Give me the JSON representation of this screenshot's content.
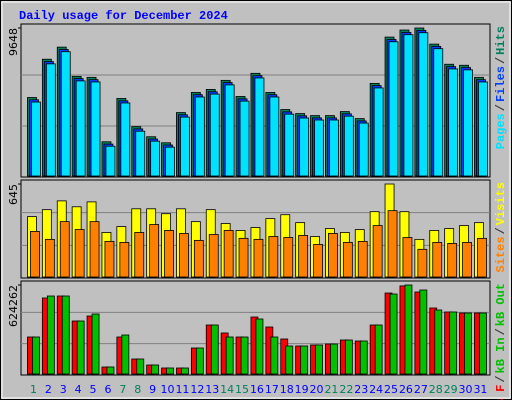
{
  "title": "Daily usage for December 2024",
  "legend_separator": "/",
  "chart_data": [
    {
      "type": "bar",
      "ylim": [
        0,
        9648
      ],
      "yticks": [
        9648
      ],
      "legend_reversed": true,
      "series": [
        {
          "name": "Hits",
          "color": "#00805c",
          "values": [
            5119,
            7613,
            8401,
            6497,
            6432,
            2231,
            5054,
            3216,
            2560,
            2166,
            4135,
            5447,
            5644,
            6235,
            5185,
            6694,
            5447,
            4332,
            4069,
            3938,
            3938,
            4200,
            3741,
            6038,
            9057,
            9516,
            9648,
            8598,
            7285,
            7219,
            6432
          ]
        },
        {
          "name": "Files",
          "color": "#0040ff",
          "values": [
            4970,
            7460,
            8250,
            6350,
            6280,
            2080,
            4900,
            3070,
            2410,
            2020,
            3990,
            5300,
            5490,
            6090,
            5030,
            6540,
            5300,
            4180,
            3920,
            3790,
            3790,
            4050,
            3590,
            5890,
            8900,
            9360,
            9490,
            8450,
            7130,
            7070,
            6280
          ]
        },
        {
          "name": "Pages",
          "color": "#00e0ff",
          "values": [
            4820,
            7310,
            8100,
            6200,
            6130,
            1940,
            4760,
            2920,
            2270,
            1880,
            3840,
            5150,
            5340,
            5940,
            4880,
            6390,
            5150,
            4030,
            3780,
            3650,
            3650,
            3900,
            3450,
            5740,
            8750,
            9210,
            9340,
            8300,
            6980,
            6920,
            6130
          ]
        }
      ]
    },
    {
      "type": "bar",
      "ylim": [
        0,
        645
      ],
      "yticks": [
        645
      ],
      "legend_reversed": true,
      "series": [
        {
          "name": "Visits",
          "color": "#ffff00",
          "values": [
            419,
            467,
            528,
            487,
            521,
            309,
            350,
            473,
            473,
            439,
            473,
            384,
            467,
            371,
            323,
            343,
            405,
            432,
            377,
            281,
            336,
            309,
            329,
            453,
            645,
            453,
            261,
            323,
            336,
            357,
            377
          ]
        },
        {
          "name": "Sites",
          "color": "#ff8000",
          "values": [
            316,
            261,
            384,
            329,
            384,
            247,
            240,
            309,
            364,
            323,
            302,
            254,
            295,
            323,
            268,
            261,
            281,
            274,
            288,
            226,
            302,
            240,
            247,
            357,
            460,
            274,
            192,
            240,
            233,
            240,
            268
          ]
        }
      ]
    },
    {
      "type": "bar",
      "ylim": [
        0,
        624262
      ],
      "yticks": [
        624262
      ],
      "legend_reversed": false,
      "series": [
        {
          "name": "kB F",
          "color": "#ff0000",
          "values": [
            259518,
            533064,
            547092,
            371742,
            406812,
            49098,
            259518,
            105210,
            63126,
            42084,
            42084,
            182364,
            343686,
            287574,
            259518,
            399798,
            329658,
            245490,
            196392,
            203406,
            210420,
            238476,
            231462,
            343686,
            568134,
            618000,
            575148,
            462924,
            434868,
            427854,
            427854
          ]
        },
        {
          "name": "kB In",
          "color": "#00c000",
          "values": [
            259518,
            547092,
            547092,
            371742,
            420840,
            49098,
            273546,
            105210,
            63126,
            42084,
            42084,
            182364,
            343686,
            259518,
            259518,
            385770,
            259518,
            196392,
            196392,
            203406,
            210420,
            238476,
            231462,
            343686,
            561120,
            624262,
            589176,
            448896,
            434868,
            427854,
            427854
          ]
        }
      ],
      "legend_extra": {
        "name": "kB Out",
        "color": "#00c000"
      },
      "categories": [
        "1",
        "2",
        "3",
        "4",
        "5",
        "6",
        "7",
        "8",
        "9",
        "10",
        "11",
        "12",
        "13",
        "14",
        "15",
        "16",
        "17",
        "18",
        "19",
        "20",
        "21",
        "22",
        "23",
        "24",
        "25",
        "26",
        "27",
        "28",
        "29",
        "30",
        "31"
      ],
      "category_colors": [
        "#00805c",
        "#0000ff",
        "#0000ff",
        "#0000ff",
        "#0000ff",
        "#0000ff",
        "#00805c",
        "#00805c",
        "#0000ff",
        "#0000ff",
        "#0000ff",
        "#0000ff",
        "#0000ff",
        "#00805c",
        "#00805c",
        "#0000ff",
        "#0000ff",
        "#0000ff",
        "#0000ff",
        "#0000ff",
        "#00805c",
        "#00805c",
        "#0000ff",
        "#0000ff",
        "#0000ff",
        "#0000ff",
        "#0000ff",
        "#00805c",
        "#00805c",
        "#0000ff",
        "#0000ff"
      ]
    }
  ]
}
